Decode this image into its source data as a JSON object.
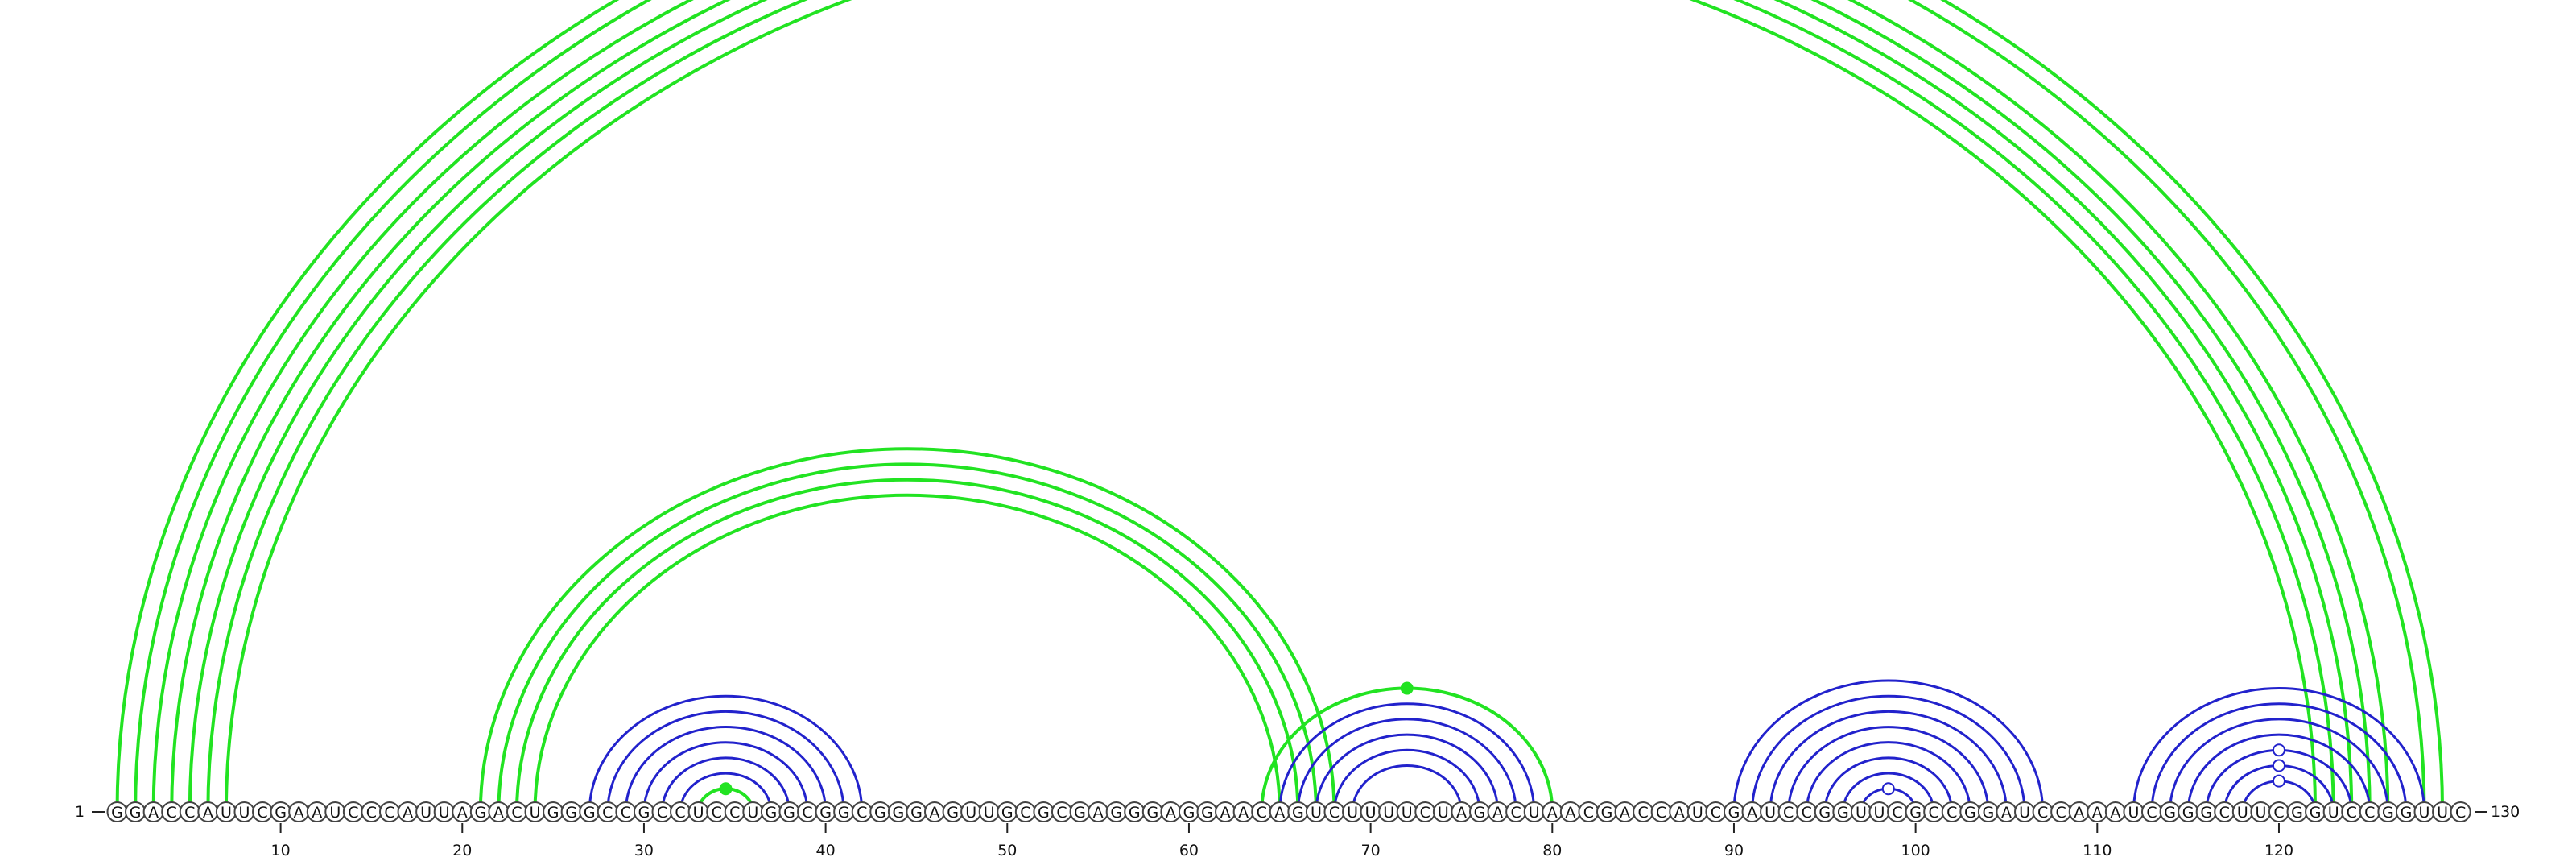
{
  "sequence": "GGACCAUUCGAAUCCCAUUAGACUGGGCCGCCUCCUGGCGGCGGGAGUUGCGCGAGGGAGGAACAGUCUUUUCUAGACUAACGACCAUCGAUCCGGUUCGCCGGAUCCAAAUCGGGCUUCGGUCCGGUUC",
  "start_label": "1",
  "end_label": "130",
  "ticks": [
    "10",
    "20",
    "30",
    "40",
    "50",
    "60",
    "70",
    "80",
    "90",
    "100",
    "110",
    "120"
  ],
  "colors": {
    "green": "#22e322",
    "blue": "#2222cc"
  },
  "arcs": [
    {
      "i": 1,
      "j": 129,
      "color": "green"
    },
    {
      "i": 2,
      "j": 128,
      "color": "green"
    },
    {
      "i": 3,
      "j": 126,
      "color": "green"
    },
    {
      "i": 4,
      "j": 125,
      "color": "green"
    },
    {
      "i": 5,
      "j": 124,
      "color": "green"
    },
    {
      "i": 6,
      "j": 123,
      "color": "green"
    },
    {
      "i": 7,
      "j": 122,
      "color": "green"
    },
    {
      "i": 21,
      "j": 68,
      "color": "green"
    },
    {
      "i": 22,
      "j": 67,
      "color": "green"
    },
    {
      "i": 23,
      "j": 66,
      "color": "green"
    },
    {
      "i": 24,
      "j": 65,
      "color": "green"
    },
    {
      "i": 64,
      "j": 80,
      "color": "green"
    },
    {
      "i": 33,
      "j": 36,
      "color": "green"
    },
    {
      "i": 27,
      "j": 42,
      "color": "blue"
    },
    {
      "i": 28,
      "j": 41,
      "color": "blue"
    },
    {
      "i": 29,
      "j": 40,
      "color": "blue"
    },
    {
      "i": 30,
      "j": 39,
      "color": "blue"
    },
    {
      "i": 31,
      "j": 38,
      "color": "blue"
    },
    {
      "i": 32,
      "j": 37,
      "color": "blue"
    },
    {
      "i": 65,
      "j": 79,
      "color": "blue"
    },
    {
      "i": 66,
      "j": 78,
      "color": "blue"
    },
    {
      "i": 67,
      "j": 77,
      "color": "blue"
    },
    {
      "i": 68,
      "j": 76,
      "color": "blue"
    },
    {
      "i": 69,
      "j": 75,
      "color": "blue"
    },
    {
      "i": 90,
      "j": 107,
      "color": "blue"
    },
    {
      "i": 91,
      "j": 106,
      "color": "blue"
    },
    {
      "i": 92,
      "j": 105,
      "color": "blue"
    },
    {
      "i": 93,
      "j": 104,
      "color": "blue"
    },
    {
      "i": 94,
      "j": 103,
      "color": "blue"
    },
    {
      "i": 95,
      "j": 102,
      "color": "blue"
    },
    {
      "i": 96,
      "j": 101,
      "color": "blue"
    },
    {
      "i": 97,
      "j": 100,
      "color": "blue"
    },
    {
      "i": 112,
      "j": 128,
      "color": "blue"
    },
    {
      "i": 113,
      "j": 127,
      "color": "blue"
    },
    {
      "i": 114,
      "j": 126,
      "color": "blue"
    },
    {
      "i": 115,
      "j": 125,
      "color": "blue"
    },
    {
      "i": 116,
      "j": 124,
      "color": "blue"
    },
    {
      "i": 117,
      "j": 123,
      "color": "blue"
    },
    {
      "i": 118,
      "j": 122,
      "color": "blue"
    }
  ],
  "markers": [
    {
      "i": 1,
      "j": 129,
      "color": "green",
      "filled": false
    },
    {
      "i": 33,
      "j": 36,
      "color": "green",
      "filled": true
    },
    {
      "i": 64,
      "j": 80,
      "color": "green",
      "filled": true
    },
    {
      "i": 97,
      "j": 100,
      "color": "blue",
      "filled": false
    },
    {
      "i": 116,
      "j": 124,
      "color": "blue",
      "filled": false
    },
    {
      "i": 117,
      "j": 123,
      "color": "blue",
      "filled": false
    },
    {
      "i": 118,
      "j": 122,
      "color": "blue",
      "filled": false
    }
  ]
}
